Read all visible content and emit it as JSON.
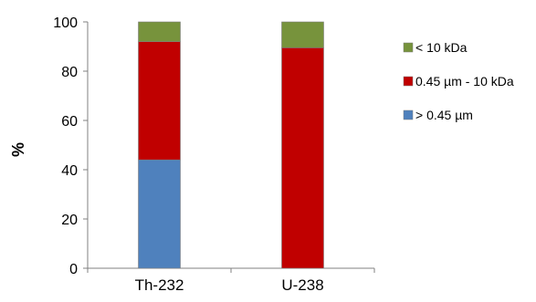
{
  "chart_data": {
    "type": "bar",
    "stacked": true,
    "categories": [
      "Th-232",
      "U-238"
    ],
    "series": [
      {
        "name": "> 0.45 µm",
        "color": "#4F81BD",
        "values": [
          44,
          0
        ]
      },
      {
        "name": "0.45 µm - 10 kDa",
        "color": "#C00000",
        "values": [
          48,
          89.5
        ]
      },
      {
        "name": "< 10 kDa",
        "color": "#77933C",
        "values": [
          8,
          10.5
        ]
      }
    ],
    "ylabel": "%",
    "xlabel": "",
    "ylim": [
      0,
      100
    ],
    "yticks": [
      0,
      20,
      40,
      60,
      80,
      100
    ],
    "grid": false,
    "legend": {
      "placement": "right",
      "order": [
        "< 10 kDa",
        "0.45 µm - 10 kDa",
        "> 0.45 µm"
      ]
    }
  }
}
